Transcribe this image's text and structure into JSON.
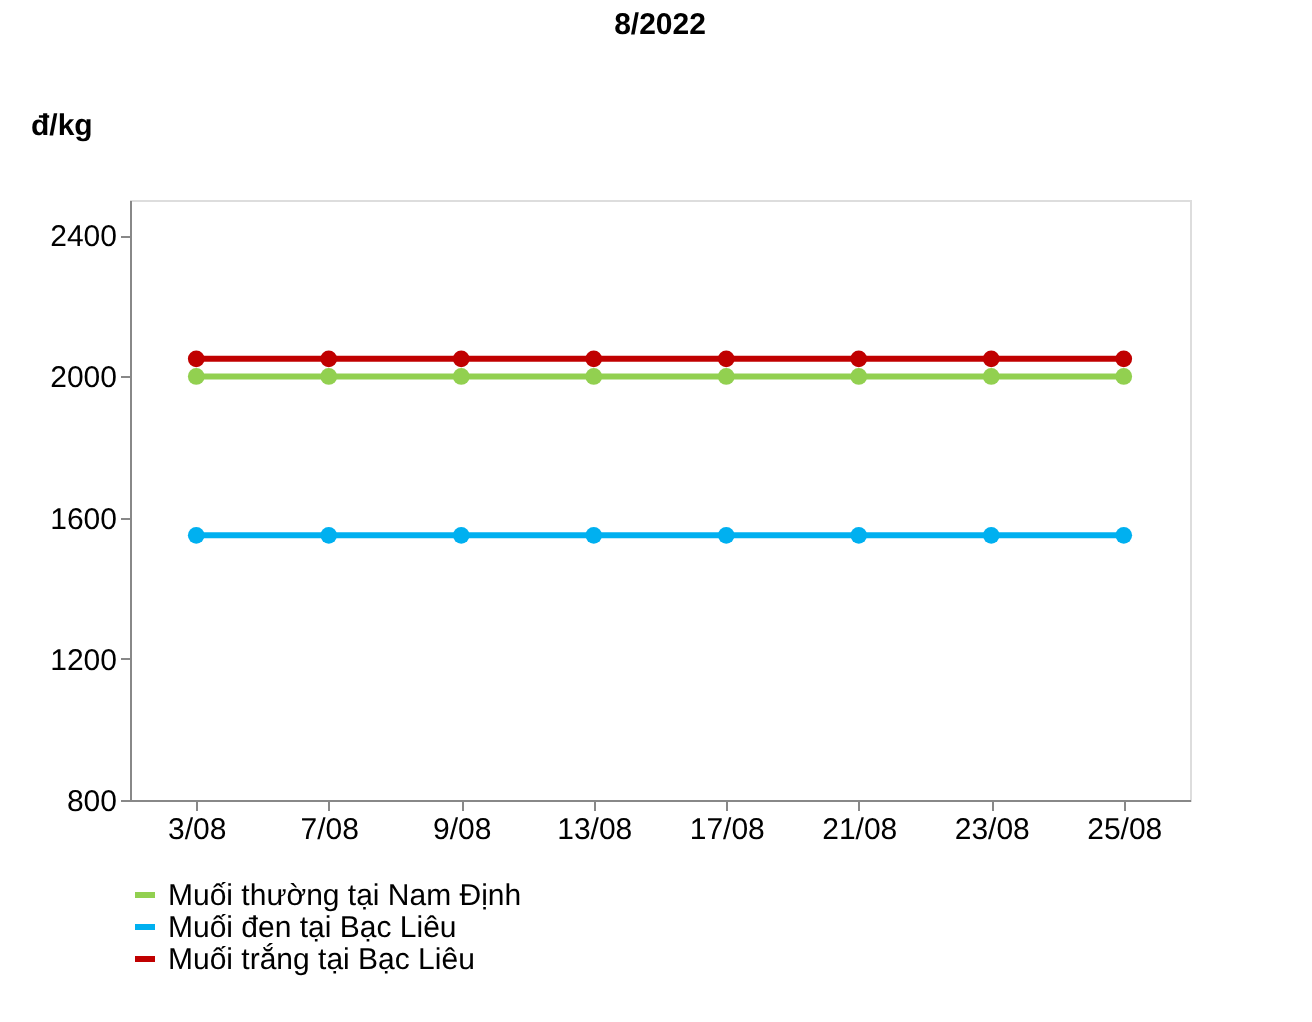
{
  "chart_data": {
    "type": "line",
    "title": "8/2022",
    "ylabel": "đ/kg",
    "categories": [
      "3/08",
      "7/08",
      "9/08",
      "13/08",
      "17/08",
      "21/08",
      "23/08",
      "25/08"
    ],
    "series": [
      {
        "name": "Muối thường tại Nam Định",
        "color": "#92d050",
        "values": [
          2000,
          2000,
          2000,
          2000,
          2000,
          2000,
          2000,
          2000
        ]
      },
      {
        "name": "Muối đen tại Bạc Liêu",
        "color": "#00b0f0",
        "values": [
          1550,
          1550,
          1550,
          1550,
          1550,
          1550,
          1550,
          1550
        ]
      },
      {
        "name": "Muối trắng tại Bạc Liêu",
        "color": "#c00000",
        "values": [
          2050,
          2050,
          2050,
          2050,
          2050,
          2050,
          2050,
          2050
        ]
      }
    ],
    "ylim": [
      800,
      2500
    ],
    "yticks": [
      800,
      1200,
      1600,
      2000,
      2400
    ],
    "grid": false,
    "legend": "bottom",
    "marker": "circle",
    "line_style": "solid"
  }
}
